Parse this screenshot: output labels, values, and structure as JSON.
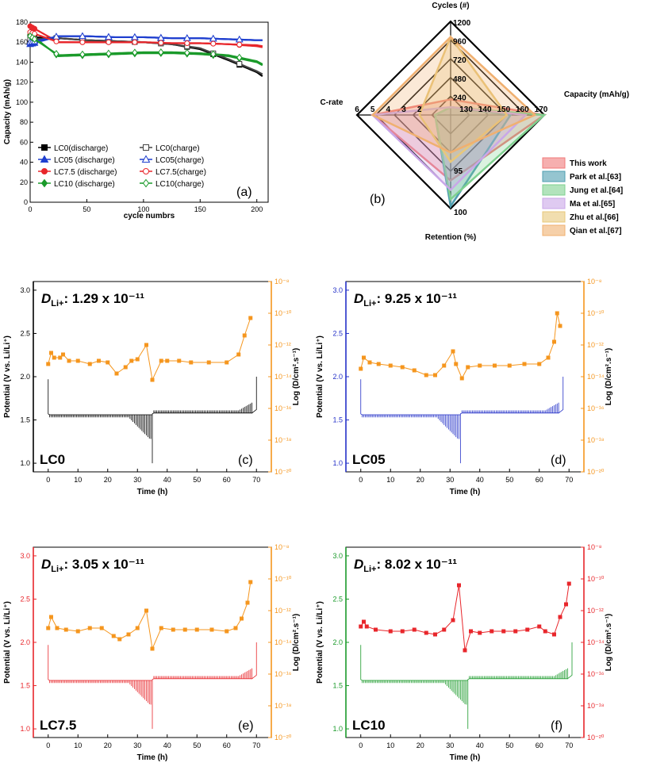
{
  "figure": {
    "width": 813,
    "height": 971
  },
  "panel_a": {
    "letter": "(a)",
    "xlabel": "cycle numbrs",
    "ylabel": "Capacity (mAh/g)",
    "xticks": [
      "0",
      "50",
      "100",
      "150",
      "200"
    ],
    "yticks": [
      "0",
      "20",
      "40",
      "60",
      "80",
      "100",
      "120",
      "140",
      "160",
      "180"
    ],
    "legend": [
      {
        "label": "LC0(discharge)",
        "color": "#000000",
        "marker": "square",
        "filled": true
      },
      {
        "label": "LC05 (discharge)",
        "color": "#1f3fcf",
        "marker": "triangle",
        "filled": true
      },
      {
        "label": "LC7.5 (discharge)",
        "color": "#e8262b",
        "marker": "circle",
        "filled": true
      },
      {
        "label": "LC10 (discharge)",
        "color": "#1a9a2a",
        "marker": "diamond",
        "filled": true
      },
      {
        "label": "LC0(charge)",
        "color": "#444444",
        "marker": "square",
        "filled": false
      },
      {
        "label": "LC05(charge)",
        "color": "#1f3fcf",
        "marker": "triangle",
        "filled": false
      },
      {
        "label": "LC7.5(charge)",
        "color": "#e8262b",
        "marker": "circle",
        "filled": false
      },
      {
        "label": "LC10(charge)",
        "color": "#1a9a2a",
        "marker": "diamond",
        "filled": false
      }
    ]
  },
  "panel_b": {
    "letter": "(b)",
    "axes": {
      "cycles": "Cycles (#)",
      "capacity": "Capacity (mAh/g)",
      "retention": "Retention (%)",
      "crate": "C-rate"
    },
    "cycle_ticks": [
      "240",
      "480",
      "720",
      "960",
      "1200"
    ],
    "capacity_ticks": [
      "130",
      "140",
      "150",
      "160",
      "170"
    ],
    "crate_ticks": [
      "2",
      "3",
      "4",
      "5",
      "6"
    ],
    "retention_ticks": [
      "95",
      "100"
    ],
    "legend": [
      {
        "label": "This work",
        "color": "#f07a7a"
      },
      {
        "label": "Park et al.[63]",
        "color": "#4f9fb0"
      },
      {
        "label": "Jung et al.[64]",
        "color": "#7fd08f"
      },
      {
        "label": "Ma et al.[65]",
        "color": "#c9a7e8"
      },
      {
        "label": "Zhu et al.[66]",
        "color": "#e8c87a"
      },
      {
        "label": "Qian et al.[67]",
        "color": "#f0b070"
      }
    ]
  },
  "gitt": {
    "xlabel": "Time (h)",
    "ylabel": "Potential (V vs. Li/Li⁺)",
    "y2label": "Log (D/cm².s⁻¹)",
    "xticks": [
      "0",
      "10",
      "20",
      "30",
      "40",
      "50",
      "60",
      "70"
    ],
    "yticks": [
      "1.0",
      "1.5",
      "2.0",
      "2.5",
      "3.0"
    ],
    "y2ticks": [
      "10⁻²⁰",
      "10⁻¹⁸",
      "10⁻¹⁶",
      "10⁻¹⁴",
      "10⁻¹²",
      "10⁻¹⁰",
      "10⁻⁸"
    ],
    "d_prefix": "D",
    "d_sub": "Li+",
    "panels": [
      {
        "id": "c",
        "letter": "(c)",
        "sample": "LC0",
        "d_text": ": 1.29 x 10⁻¹¹",
        "color": "#000000",
        "left_axis_color": "#000000",
        "d_color": "#f5961e"
      },
      {
        "id": "d",
        "letter": "(d)",
        "sample": "LC05",
        "d_text": ": 9.25 x 10⁻¹¹",
        "color": "#2431c8",
        "left_axis_color": "#2431c8",
        "d_color": "#f5961e"
      },
      {
        "id": "e",
        "letter": "(e)",
        "sample": "LC7.5",
        "d_text": ": 3.05 x 10⁻¹¹",
        "color": "#e8262b",
        "left_axis_color": "#e8262b",
        "d_color": "#f5961e"
      },
      {
        "id": "f",
        "letter": "(f)",
        "sample": "LC10",
        "d_text": ": 8.02 x 10⁻¹¹",
        "color": "#1a9a2a",
        "left_axis_color": "#1a9a2a",
        "d_color": "#e8262b"
      }
    ]
  },
  "chart_data": [
    {
      "type": "scatter",
      "title": "(a)",
      "xlabel": "cycle numbrs",
      "ylabel": "Capacity (mAh/g)",
      "xlim": [
        0,
        210
      ],
      "ylim": [
        0,
        180
      ],
      "series": [
        {
          "name": "LC0(discharge)",
          "x": [
            0,
            25,
            50,
            75,
            100,
            125,
            150,
            175,
            200,
            205
          ],
          "y": [
            165,
            164,
            162,
            161,
            160,
            158,
            153,
            142,
            130,
            126
          ]
        },
        {
          "name": "LC05 (discharge)",
          "x": [
            0,
            25,
            50,
            75,
            100,
            125,
            150,
            175,
            200,
            205
          ],
          "y": [
            158,
            166,
            166,
            165,
            165,
            164,
            164,
            163,
            162,
            162
          ]
        },
        {
          "name": "LC7.5 (discharge)",
          "x": [
            0,
            25,
            50,
            75,
            100,
            125,
            150,
            175,
            200,
            205
          ],
          "y": [
            176,
            160,
            160,
            160,
            160,
            159,
            159,
            158,
            156,
            155
          ]
        },
        {
          "name": "LC10 (discharge)",
          "x": [
            0,
            25,
            50,
            75,
            100,
            125,
            150,
            175,
            200,
            205
          ],
          "y": [
            168,
            146,
            147,
            148,
            149,
            149,
            148,
            146,
            140,
            137
          ]
        },
        {
          "name": "LC0(charge)",
          "x": [
            0,
            25,
            50,
            75,
            100,
            125,
            150,
            175,
            200,
            205
          ],
          "y": [
            163,
            164,
            162,
            161,
            160,
            158,
            154,
            143,
            131,
            128
          ]
        },
        {
          "name": "LC05(charge)",
          "x": [
            0,
            25,
            50,
            75,
            100,
            125,
            150,
            175,
            200,
            205
          ],
          "y": [
            160,
            166,
            166,
            165,
            165,
            164,
            164,
            163,
            162,
            162
          ]
        },
        {
          "name": "LC7.5(charge)",
          "x": [
            0,
            25,
            50,
            75,
            100,
            125,
            150,
            175,
            200,
            205
          ],
          "y": [
            170,
            160,
            160,
            160,
            160,
            159,
            159,
            158,
            157,
            156
          ]
        },
        {
          "name": "LC10(charge)",
          "x": [
            0,
            25,
            50,
            75,
            100,
            125,
            150,
            175,
            200,
            205
          ],
          "y": [
            166,
            147,
            148,
            149,
            150,
            150,
            149,
            147,
            141,
            138
          ]
        }
      ]
    },
    {
      "type": "radar",
      "title": "(b)",
      "axes": [
        "Cycles (#)",
        "Capacity (mAh/g)",
        "Retention (%)",
        "C-rate"
      ],
      "series": [
        {
          "name": "This work",
          "values": {
            "cycles": 200,
            "capacity": 170,
            "retention": 94,
            "crate": 5
          }
        },
        {
          "name": "Park et al.[63]",
          "values": {
            "cycles": 100,
            "capacity": 152,
            "retention": 99.5,
            "crate": 1
          }
        },
        {
          "name": "Jung et al.[64]",
          "values": {
            "cycles": 100,
            "capacity": 170,
            "retention": 98,
            "crate": 1
          }
        },
        {
          "name": "Ma et al.[65]",
          "values": {
            "cycles": 100,
            "capacity": 160,
            "retention": 96,
            "crate": 5
          }
        },
        {
          "name": "Zhu et al.[66]",
          "values": {
            "cycles": 1000,
            "capacity": 150,
            "retention": 90,
            "crate": 2
          }
        },
        {
          "name": "Qian et al.[67]",
          "values": {
            "cycles": 1000,
            "capacity": 165,
            "retention": 88,
            "crate": 5
          }
        }
      ]
    },
    {
      "type": "line",
      "title": "(c) LC0",
      "xlabel": "Time (h)",
      "ylim": [
        0.9,
        3.1
      ],
      "y2lim": [
        -20,
        -8
      ],
      "diffusion": {
        "x": [
          0,
          1,
          2,
          4,
          5,
          7,
          10,
          14,
          17,
          20,
          23,
          26,
          28,
          30,
          33,
          35,
          38,
          40,
          44,
          48,
          54,
          60,
          64,
          66,
          68
        ],
        "y": [
          -13.2,
          -12.5,
          -12.8,
          -12.8,
          -12.6,
          -13,
          -13,
          -13.2,
          -13,
          -13.1,
          -13.8,
          -13.4,
          -13,
          -12.9,
          -12,
          -14.2,
          -13,
          -13,
          -13,
          -13.1,
          -13.1,
          -13.1,
          -12.6,
          -11.4,
          -10.3
        ]
      }
    },
    {
      "type": "line",
      "title": "(d) LC05",
      "xlabel": "Time (h)",
      "ylim": [
        0.9,
        3.1
      ],
      "y2lim": [
        -20,
        -8
      ],
      "diffusion": {
        "x": [
          0,
          1,
          3,
          6,
          10,
          14,
          18,
          22,
          25,
          28,
          31,
          32,
          34,
          36,
          40,
          45,
          50,
          55,
          60,
          63,
          65,
          66,
          67
        ],
        "y": [
          -13.5,
          -12.8,
          -13.1,
          -13.2,
          -13.3,
          -13.4,
          -13.6,
          -13.9,
          -13.9,
          -13.3,
          -12.4,
          -13.2,
          -14.1,
          -13.4,
          -13.3,
          -13.3,
          -13.3,
          -13.2,
          -13.2,
          -12.8,
          -11.8,
          -10,
          -10.8
        ]
      }
    },
    {
      "type": "line",
      "title": "(e) LC7.5",
      "xlabel": "Time (h)",
      "ylim": [
        0.9,
        3.1
      ],
      "y2lim": [
        -20,
        -8
      ],
      "diffusion": {
        "x": [
          0,
          1,
          3,
          6,
          10,
          14,
          18,
          22,
          24,
          27,
          30,
          33,
          35,
          38,
          42,
          46,
          50,
          55,
          60,
          63,
          65,
          67,
          68
        ],
        "y": [
          -13.1,
          -12.4,
          -13.1,
          -13.2,
          -13.3,
          -13.1,
          -13.1,
          -13.6,
          -13.8,
          -13.5,
          -13.1,
          -12.0,
          -14.4,
          -13.1,
          -13.2,
          -13.2,
          -13.2,
          -13.2,
          -13.3,
          -13.1,
          -12.5,
          -11.5,
          -10.2
        ]
      }
    },
    {
      "type": "line",
      "title": "(f) LC10",
      "xlabel": "Time (h)",
      "ylim": [
        0.9,
        3.1
      ],
      "y2lim": [
        -20,
        -8
      ],
      "diffusion": {
        "x": [
          0,
          1,
          2,
          5,
          10,
          14,
          18,
          22,
          25,
          28,
          31,
          33,
          35,
          37,
          40,
          44,
          48,
          52,
          56,
          60,
          62,
          65,
          67,
          69,
          70
        ],
        "y": [
          -13,
          -12.7,
          -13,
          -13.2,
          -13.3,
          -13.3,
          -13.2,
          -13.4,
          -13.5,
          -13.2,
          -12.6,
          -10.4,
          -14.5,
          -13.3,
          -13.4,
          -13.3,
          -13.3,
          -13.3,
          -13.2,
          -13.0,
          -13.3,
          -13.5,
          -12.4,
          -11.6,
          -10.3
        ]
      }
    }
  ]
}
